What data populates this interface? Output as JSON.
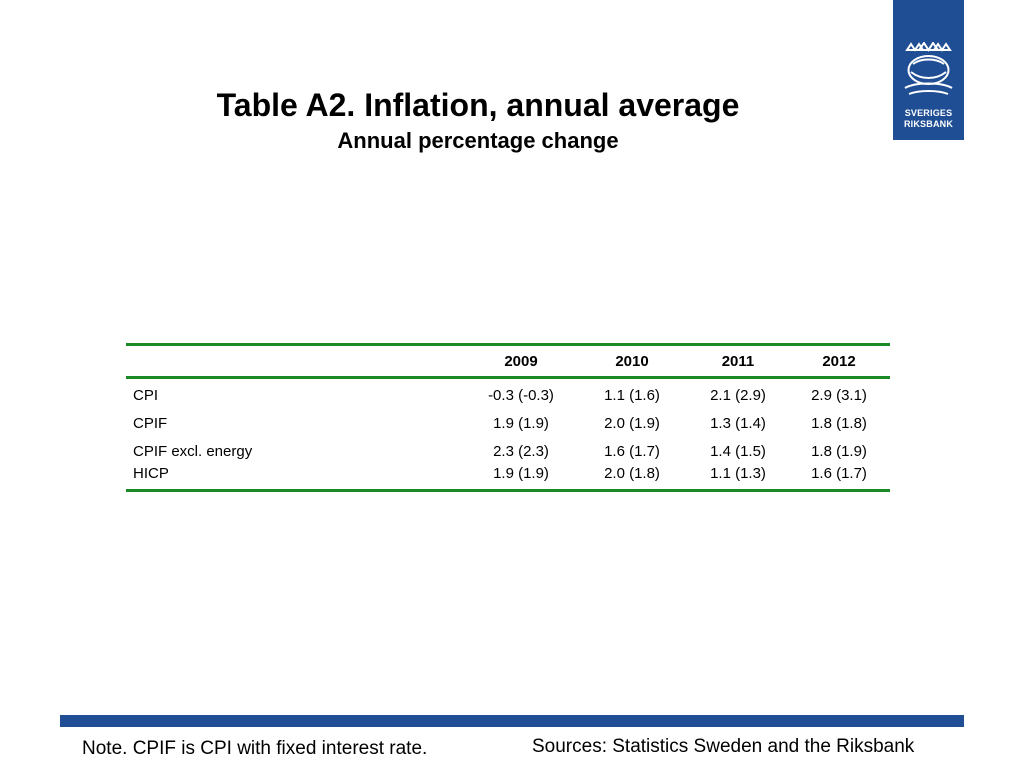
{
  "logo": {
    "line1": "SVERIGES",
    "line2": "RIKSBANK"
  },
  "title": "Table A2. Inflation, annual average",
  "subtitle": "Annual percentage change",
  "table": {
    "columns": [
      "",
      "2009",
      "2010",
      "2011",
      "2012"
    ],
    "rows": [
      {
        "label": "CPI",
        "values": [
          "-0.3 (-0.3)",
          "1.1 (1.6)",
          "2.1 (2.9)",
          "2.9 (3.1)"
        ]
      },
      {
        "label": "CPIF",
        "values": [
          "1.9 (1.9)",
          "2.0 (1.9)",
          "1.3 (1.4)",
          "1.8 (1.8)"
        ]
      },
      {
        "label": "CPIF excl. energy",
        "values": [
          "2.3 (2.3)",
          "1.6 (1.7)",
          "1.4 (1.5)",
          "1.8 (1.9)"
        ]
      },
      {
        "label": "HICP",
        "values": [
          "1.9 (1.9)",
          "2.0 (1.8)",
          "1.1 (1.3)",
          "1.6 (1.7)"
        ]
      }
    ]
  },
  "footer": {
    "note": "Note. CPIF is CPI with fixed interest rate.",
    "sources": "Sources: Statistics Sweden and the Riksbank"
  },
  "colors": {
    "brand_blue": "#1f4e95",
    "rule_green": "#1a8a24"
  }
}
